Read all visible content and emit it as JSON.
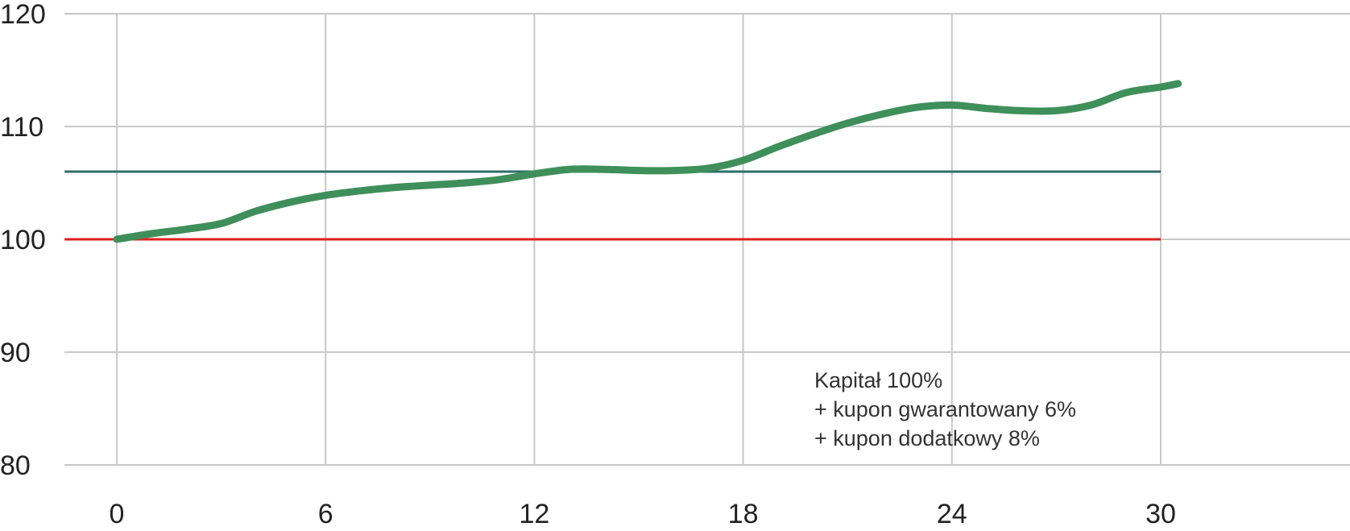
{
  "chart_data": {
    "type": "line",
    "title": "",
    "xlabel": "",
    "ylabel": "",
    "xlim": [
      -3,
      35
    ],
    "ylim": [
      80,
      120
    ],
    "x_ticks": [
      0,
      6,
      12,
      18,
      24,
      30
    ],
    "y_ticks": [
      80,
      90,
      100,
      110,
      120
    ],
    "grid": true,
    "series": [
      {
        "color": "#3f8f5a",
        "x": [
          0,
          1,
          2,
          3,
          4,
          5,
          6,
          7,
          8,
          9,
          10,
          11,
          12,
          13,
          14,
          15,
          16,
          17,
          18,
          19,
          20,
          21,
          22,
          23,
          24,
          25,
          26,
          27,
          28,
          29,
          30,
          30.5
        ],
        "y": [
          100.0,
          100.5,
          100.9,
          101.4,
          102.5,
          103.3,
          103.9,
          104.3,
          104.6,
          104.8,
          105.0,
          105.3,
          105.8,
          106.2,
          106.2,
          106.1,
          106.1,
          106.3,
          107.0,
          108.2,
          109.3,
          110.3,
          111.1,
          111.7,
          111.9,
          111.6,
          111.4,
          111.4,
          111.9,
          113.0,
          113.5,
          113.8
        ]
      },
      {
        "color": "#2e6e6a",
        "x": [
          -1.5,
          30
        ],
        "y": [
          106,
          106
        ]
      },
      {
        "color": "#e02020",
        "x": [
          -1.5,
          30
        ],
        "y": [
          100,
          100
        ]
      }
    ],
    "annotation": [
      "Kapitał 100%",
      "+ kupon gwarantowany 6%",
      "+ kupon dodatkowy 8%"
    ]
  }
}
